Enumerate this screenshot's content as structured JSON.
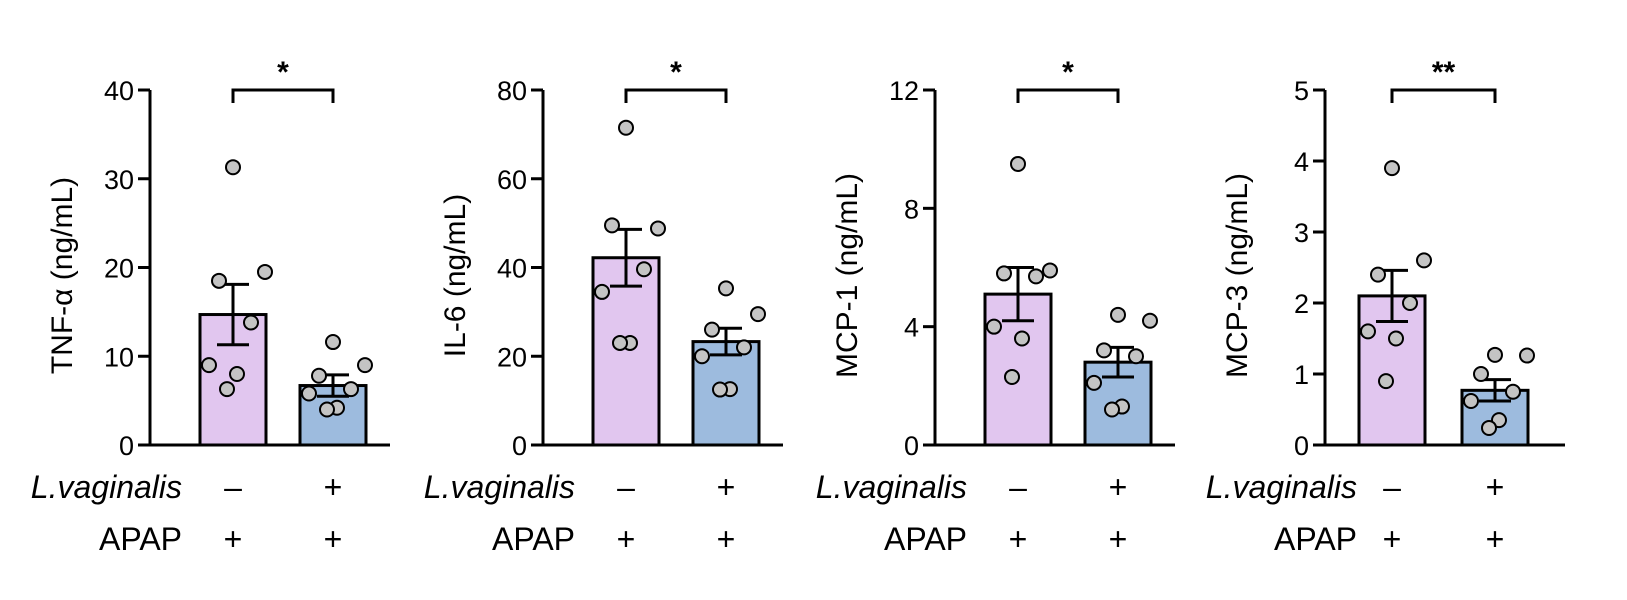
{
  "colors": {
    "group1_fill": "#E1C6EF",
    "group2_fill": "#9DBBDE",
    "point_fill": "#C4C4C4",
    "stroke": "#000000"
  },
  "row_labels": {
    "treatment": "L.vaginalis",
    "base": "APAP"
  },
  "chart_data": [
    {
      "type": "bar",
      "ylabel": "TNF-α (ng/mL)",
      "ylim": [
        0,
        40
      ],
      "yticks": [
        "0",
        "10",
        "20",
        "30",
        "40"
      ],
      "groups": [
        {
          "treatment": "–",
          "base": "+",
          "mean": 14.7,
          "sem": 3.4,
          "points": [
            31.3,
            19.5,
            18.5,
            13.8,
            9.0,
            8.0,
            6.3
          ]
        },
        {
          "treatment": "+",
          "base": "+",
          "mean": 6.7,
          "sem": 1.2,
          "points": [
            11.6,
            9.0,
            7.8,
            6.3,
            5.8,
            4.2,
            4.0
          ]
        }
      ],
      "significance": "*"
    },
    {
      "type": "bar",
      "ylabel": "IL-6 (ng/mL)",
      "ylim": [
        0,
        80
      ],
      "yticks": [
        "0",
        "20",
        "40",
        "60",
        "80"
      ],
      "groups": [
        {
          "treatment": "–",
          "base": "+",
          "mean": 42.2,
          "sem": 6.4,
          "points": [
            71.5,
            48.8,
            49.5,
            39.6,
            34.5,
            23.0,
            23.0
          ]
        },
        {
          "treatment": "+",
          "base": "+",
          "mean": 23.3,
          "sem": 3.0,
          "points": [
            35.3,
            29.5,
            26.0,
            22.0,
            20.0,
            12.6,
            12.5
          ]
        }
      ],
      "significance": "*"
    },
    {
      "type": "bar",
      "ylabel": "MCP-1 (ng/mL)",
      "ylim": [
        0,
        12
      ],
      "yticks": [
        "0",
        "4",
        "8",
        "12"
      ],
      "groups": [
        {
          "treatment": "–",
          "base": "+",
          "mean": 5.1,
          "sem": 0.9,
          "points": [
            9.5,
            5.9,
            5.8,
            5.7,
            4.0,
            3.6,
            2.3
          ]
        },
        {
          "treatment": "+",
          "base": "+",
          "mean": 2.8,
          "sem": 0.5,
          "points": [
            4.4,
            4.2,
            3.2,
            3.0,
            2.1,
            1.3,
            1.2
          ]
        }
      ],
      "significance": "*"
    },
    {
      "type": "bar",
      "ylabel": "MCP-3 (ng/mL)",
      "ylim": [
        0,
        5
      ],
      "yticks": [
        "0",
        "1",
        "2",
        "3",
        "4",
        "5"
      ],
      "groups": [
        {
          "treatment": "–",
          "base": "+",
          "mean": 2.1,
          "sem": 0.36,
          "points": [
            3.9,
            2.6,
            2.4,
            2.0,
            1.6,
            1.5,
            0.9
          ]
        },
        {
          "treatment": "+",
          "base": "+",
          "mean": 0.77,
          "sem": 0.15,
          "points": [
            1.27,
            1.26,
            1.0,
            0.75,
            0.62,
            0.35,
            0.24
          ]
        }
      ],
      "significance": "**"
    }
  ]
}
